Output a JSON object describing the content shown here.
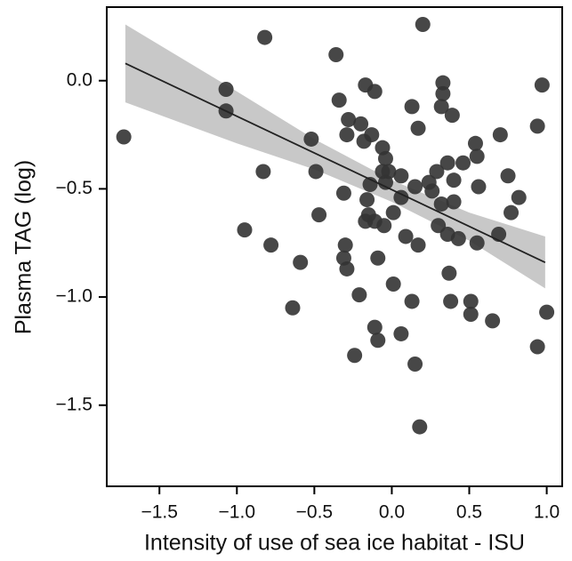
{
  "chart_data": {
    "type": "scatter",
    "xlabel": "Intensity of use of sea ice habitat - ISU",
    "ylabel": "Plasma TAG (log)",
    "xlim": [
      -1.84,
      1.1
    ],
    "ylim": [
      -1.875,
      0.34
    ],
    "xticks": [
      {
        "value": -1.5,
        "label": "−1.5"
      },
      {
        "value": -1.0,
        "label": "−1.0"
      },
      {
        "value": -0.5,
        "label": "−0.5"
      },
      {
        "value": 0,
        "label": "0.0"
      },
      {
        "value": 0.5,
        "label": "0.5"
      },
      {
        "value": 1.0,
        "label": "1.0"
      }
    ],
    "yticks": [
      {
        "value": 0,
        "label": "0.0"
      },
      {
        "value": -0.5,
        "label": "−0.5"
      },
      {
        "value": -1.0,
        "label": "−1.0"
      },
      {
        "value": -1.5,
        "label": "−1.5"
      }
    ],
    "color": "#333333",
    "x": [
      -1.73,
      -0.82,
      0.2,
      -0.36,
      -1.07,
      -1.07,
      -0.34,
      -0.17,
      -0.11,
      -0.83,
      -0.95,
      -0.78,
      -0.59,
      -0.64,
      -0.52,
      -0.49,
      -0.47,
      -0.31,
      -0.3,
      -0.31,
      -0.29,
      -0.21,
      -0.24,
      -0.11,
      -0.09,
      0.01,
      0.06,
      0.13,
      0.15,
      0.18,
      -0.28,
      -0.29,
      -0.2,
      -0.18,
      -0.13,
      -0.06,
      -0.04,
      -0.06,
      -0.02,
      -0.04,
      -0.14,
      -0.16,
      -0.15,
      -0.17,
      -0.11,
      -0.05,
      -0.09,
      0.13,
      0.17,
      0.06,
      0.06,
      0.09,
      0.17,
      0.15,
      0.24,
      0.26,
      0.29,
      0.33,
      0.33,
      0.32,
      0.39,
      0.36,
      0.4,
      0.46,
      0.54,
      0.55,
      0.56,
      0.4,
      0.32,
      0.3,
      0.36,
      0.43,
      0.55,
      0.37,
      0.38,
      0.51,
      0.51,
      0.65,
      0.69,
      0.7,
      0.75,
      0.77,
      0.82,
      0.97,
      0.94,
      1.0,
      0.94,
      0.01
    ],
    "y": [
      -0.26,
      0.2,
      0.26,
      0.12,
      -0.04,
      -0.14,
      -0.09,
      -0.02,
      -0.05,
      -0.42,
      -0.69,
      -0.76,
      -0.84,
      -1.05,
      -0.27,
      -0.42,
      -0.62,
      -0.52,
      -0.76,
      -0.82,
      -0.87,
      -0.99,
      -1.27,
      -1.14,
      -1.2,
      -0.94,
      -1.17,
      -1.02,
      -1.31,
      -1.6,
      -0.18,
      -0.25,
      -0.2,
      -0.28,
      -0.25,
      -0.31,
      -0.36,
      -0.42,
      -0.42,
      -0.47,
      -0.48,
      -0.55,
      -0.62,
      -0.65,
      -0.65,
      -0.67,
      -0.82,
      -0.12,
      -0.22,
      -0.44,
      -0.54,
      -0.72,
      -0.76,
      -0.49,
      -0.47,
      -0.51,
      -0.42,
      -0.01,
      -0.06,
      -0.12,
      -0.16,
      -0.38,
      -0.46,
      -0.38,
      -0.29,
      -0.35,
      -0.49,
      -0.56,
      -0.57,
      -0.67,
      -0.71,
      -0.73,
      -0.75,
      -0.89,
      -1.02,
      -1.02,
      -1.08,
      -1.11,
      -0.71,
      -0.25,
      -0.44,
      -0.61,
      -0.54,
      -0.02,
      -0.21,
      -1.07,
      -1.23,
      -0.61
    ],
    "fit": {
      "x": [
        -1.72,
        0.99
      ],
      "y": [
        0.08,
        -0.84
      ]
    },
    "band": {
      "x": [
        -1.72,
        -1.0,
        -0.5,
        0,
        0.5,
        0.99
      ],
      "lower": [
        -0.1,
        -0.29,
        -0.41,
        -0.56,
        -0.74,
        -0.96
      ],
      "upper": [
        0.26,
        -0.05,
        -0.27,
        -0.46,
        -0.61,
        -0.72
      ]
    },
    "band_color": "#c8c8c8"
  }
}
